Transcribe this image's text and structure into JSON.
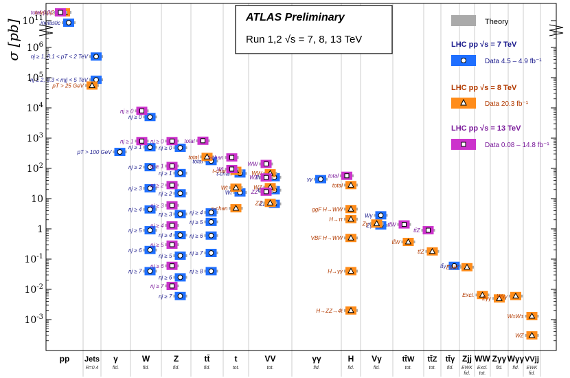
{
  "chart_data": {
    "type": "scatter",
    "title": "ATLAS Preliminary",
    "subtitle": "Run 1,2   √s = 7, 8, 13 TeV",
    "ylabel": "σ [pb]",
    "yscale": "log",
    "ylim": [
      0.0003,
      300000000000
    ],
    "ytick_labels": [
      "10^11",
      "10^6",
      "10^5",
      "10^4",
      "10^3",
      "10^2",
      "10",
      "1",
      "10^-1",
      "10^-2",
      "10^-3"
    ],
    "ytick_values": [
      100000000000,
      1000000,
      100000,
      10000,
      1000,
      100,
      10,
      1,
      0.1,
      0.01,
      0.001
    ],
    "colors": {
      "theory": "#aaaaaa",
      "tev7": "#1f6fff",
      "tev8": "#ff8c1a",
      "tev13": "#cc33cc",
      "tev7_text": "#1a1a8c",
      "tev8_text": "#b23a00",
      "tev13_text": "#7a1a9a"
    },
    "legend": {
      "theory": "Theory",
      "lhc7": "LHC pp  √s = 7 TeV",
      "lhc7_data": "Data  4.5 – 4.9 fb⁻¹",
      "lhc8": "LHC pp  √s = 8 TeV",
      "lhc8_data": "Data  20.3 fb⁻¹",
      "lhc13": "LHC pp  √s = 13 TeV",
      "lhc13_data": "Data  0.08 – 14.8 fb⁻¹"
    },
    "categories": [
      {
        "name": "pp",
        "sub": ""
      },
      {
        "name": "Jets",
        "sub": "R=0.4"
      },
      {
        "name": "γ",
        "sub": "fid."
      },
      {
        "name": "W",
        "sub": "fid."
      },
      {
        "name": "Z",
        "sub": "fid."
      },
      {
        "name": "tt̄",
        "sub": "fid."
      },
      {
        "name": "t",
        "sub": "tot."
      },
      {
        "name": "VV",
        "sub": "tot."
      },
      {
        "name": "γγ",
        "sub": "fid."
      },
      {
        "name": "H",
        "sub": "fid."
      },
      {
        "name": "Vγ",
        "sub": "fid."
      },
      {
        "name": "tt̄W",
        "sub": "tot."
      },
      {
        "name": "tt̄Z",
        "sub": "tot."
      },
      {
        "name": "tt̄γ",
        "sub": "fid."
      },
      {
        "name": "Zjj",
        "sub": "EWK fid."
      },
      {
        "name": "WW",
        "sub": "Excl. tot."
      },
      {
        "name": "Zγγ",
        "sub": "fid."
      },
      {
        "name": "Wγγ",
        "sub": "fid."
      },
      {
        "name": "VVjj",
        "sub": "EWK fid."
      }
    ],
    "series": [
      {
        "name": "7 TeV",
        "points": [
          {
            "cat": "pp",
            "label": "inelastic",
            "value": 70000000000
          },
          {
            "cat": "Jets",
            "label": "nj ≥ 1, 0.1 < pT < 2 TeV",
            "value": 500000
          },
          {
            "cat": "Jets",
            "label": "nj ≥ 2, 0.3 < mjj < 5 TeV",
            "value": 85000
          },
          {
            "cat": "γ",
            "label": "pT > 100 GeV",
            "value": 350
          },
          {
            "cat": "W",
            "label": "nj ≥ 0",
            "value": 5000
          },
          {
            "cat": "W",
            "label": "nj ≥ 1",
            "value": 500
          },
          {
            "cat": "W",
            "label": "nj ≥ 2",
            "value": 110
          },
          {
            "cat": "W",
            "label": "nj ≥ 3",
            "value": 22
          },
          {
            "cat": "W",
            "label": "nj ≥ 4",
            "value": 4.4
          },
          {
            "cat": "W",
            "label": "nj ≥ 5",
            "value": 0.9
          },
          {
            "cat": "W",
            "label": "nj ≥ 6",
            "value": 0.2
          },
          {
            "cat": "W",
            "label": "nj ≥ 7",
            "value": 0.04
          },
          {
            "cat": "Z",
            "label": "nj ≥ 0",
            "value": 480
          },
          {
            "cat": "Z",
            "label": "nj ≥ 1",
            "value": 70
          },
          {
            "cat": "Z",
            "label": "nj ≥ 2",
            "value": 15
          },
          {
            "cat": "Z",
            "label": "nj ≥ 3",
            "value": 3.1
          },
          {
            "cat": "Z",
            "label": "nj ≥ 4",
            "value": 0.62
          },
          {
            "cat": "Z",
            "label": "nj ≥ 5",
            "value": 0.13
          },
          {
            "cat": "Z",
            "label": "nj ≥ 6",
            "value": 0.025
          },
          {
            "cat": "Z",
            "label": "nj ≥ 7",
            "value": 0.006
          },
          {
            "cat": "tt̄",
            "label": "total",
            "value": 175
          },
          {
            "cat": "tt̄",
            "label": "nj ≥ 4",
            "value": 3.5
          },
          {
            "cat": "tt̄",
            "label": "nj ≥ 5",
            "value": 1.7
          },
          {
            "cat": "tt̄",
            "label": "nj ≥ 6",
            "value": 0.6
          },
          {
            "cat": "tt̄",
            "label": "nj ≥ 7",
            "value": 0.16
          },
          {
            "cat": "tt̄",
            "label": "nj ≥ 8",
            "value": 0.04
          },
          {
            "cat": "t",
            "label": "t-chan",
            "value": 68
          },
          {
            "cat": "t",
            "label": "Wt",
            "value": 16
          },
          {
            "cat": "VV",
            "label": "WW",
            "value": 51
          },
          {
            "cat": "VV",
            "label": "WZ",
            "value": 19
          },
          {
            "cat": "VV",
            "label": "ZZ",
            "value": 6.7
          },
          {
            "cat": "γγ",
            "label": "γγ",
            "value": 44
          },
          {
            "cat": "Vγ",
            "label": "Wγ",
            "value": 2.8
          },
          {
            "cat": "Vγ",
            "label": "Zγ",
            "value": 1.3
          },
          {
            "cat": "tt̄γ",
            "label": "tt̄γ",
            "value": 0.06
          }
        ]
      },
      {
        "name": "8 TeV",
        "points": [
          {
            "cat": "pp",
            "label": "total (x2)",
            "value": 200000000000
          },
          {
            "cat": "Jets",
            "label": "pT > 25 GeV",
            "value": 55000
          },
          {
            "cat": "t",
            "label": "t-chan",
            "value": 83
          },
          {
            "cat": "t",
            "label": "Wt",
            "value": 23
          },
          {
            "cat": "t",
            "label": "s-chan",
            "value": 4.8
          },
          {
            "cat": "tt̄",
            "label": "total",
            "value": 240
          },
          {
            "cat": "VV",
            "label": "WW",
            "value": 69
          },
          {
            "cat": "VV",
            "label": "WZ",
            "value": 24
          },
          {
            "cat": "VV",
            "label": "ZZ",
            "value": 7.2
          },
          {
            "cat": "H",
            "label": "total",
            "value": 28
          },
          {
            "cat": "H",
            "label": "ggF H→WW",
            "value": 4.5
          },
          {
            "cat": "H",
            "label": "H→ττ",
            "value": 2.1
          },
          {
            "cat": "H",
            "label": "VBF H→WW",
            "value": 0.5
          },
          {
            "cat": "H",
            "label": "H→γγ",
            "value": 0.04
          },
          {
            "cat": "H",
            "label": "H→ZZ→4ℓ",
            "value": 0.002
          },
          {
            "cat": "Vγ",
            "label": "Zγ",
            "value": 1.5
          },
          {
            "cat": "tt̄W",
            "label": "tt̄W",
            "value": 0.37
          },
          {
            "cat": "tt̄Z",
            "label": "tt̄Z",
            "value": 0.18
          },
          {
            "cat": "Zjj",
            "label": "EWK",
            "value": 0.054
          },
          {
            "cat": "WW",
            "label": "Excl.",
            "value": 0.0065
          },
          {
            "cat": "Zγγ",
            "label": "Zγγ",
            "value": 0.005
          },
          {
            "cat": "Wγγ",
            "label": "Wγγ",
            "value": 0.006
          },
          {
            "cat": "VVjj",
            "label": "W±W±",
            "value": 0.0013
          },
          {
            "cat": "VVjj",
            "label": "WZ",
            "value": 0.0003
          }
        ]
      },
      {
        "name": "13 TeV",
        "points": [
          {
            "cat": "pp",
            "label": "total (x2)",
            "value": 200000000000
          },
          {
            "cat": "W",
            "label": "nj ≥ 0",
            "value": 8000
          },
          {
            "cat": "W",
            "label": "nj ≥ 1",
            "value": 800
          },
          {
            "cat": "Z",
            "label": "nj ≥ 0",
            "value": 800
          },
          {
            "cat": "Z",
            "label": "nj ≥ 1",
            "value": 120
          },
          {
            "cat": "Z",
            "label": "nj ≥ 2",
            "value": 28
          },
          {
            "cat": "Z",
            "label": "nj ≥ 3",
            "value": 6
          },
          {
            "cat": "Z",
            "label": "nj ≥ 4",
            "value": 1.3
          },
          {
            "cat": "Z",
            "label": "nj ≥ 5",
            "value": 0.3
          },
          {
            "cat": "Z",
            "label": "nj ≥ 6",
            "value": 0.06
          },
          {
            "cat": "Z",
            "label": "nj ≥ 7",
            "value": 0.013
          },
          {
            "cat": "tt̄",
            "label": "total",
            "value": 820
          },
          {
            "cat": "t",
            "label": "t-chan",
            "value": 230
          },
          {
            "cat": "t",
            "label": "Wt",
            "value": 95
          },
          {
            "cat": "VV",
            "label": "WW",
            "value": 140
          },
          {
            "cat": "VV",
            "label": "WZ",
            "value": 50
          },
          {
            "cat": "VV",
            "label": "ZZ",
            "value": 17
          },
          {
            "cat": "H",
            "label": "total",
            "value": 57
          },
          {
            "cat": "tt̄W",
            "label": "tt̄W",
            "value": 1.4
          },
          {
            "cat": "tt̄Z",
            "label": "tt̄Z",
            "value": 0.9
          }
        ]
      }
    ]
  }
}
